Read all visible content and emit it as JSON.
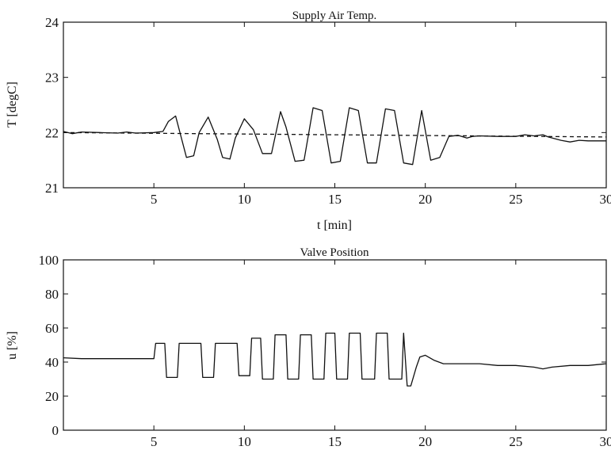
{
  "chart_data": [
    {
      "type": "line",
      "title": "Supply Air Temp.",
      "xlabel": "t [min]",
      "ylabel": "T [degC]",
      "xlim": [
        0,
        30
      ],
      "ylim": [
        21,
        24
      ],
      "xticks": [
        5,
        10,
        15,
        20,
        25,
        30
      ],
      "yticks": [
        21,
        22,
        23,
        24
      ],
      "grid": false,
      "series": [
        {
          "style": "solid",
          "x": [
            0,
            0.5,
            1,
            2,
            3,
            3.5,
            4,
            5,
            5.5,
            5.8,
            6.2,
            6.8,
            7.2,
            7.5,
            8.0,
            8.5,
            8.8,
            9.2,
            9.5,
            10.0,
            10.5,
            11.0,
            11.5,
            12.0,
            12.3,
            12.8,
            13.3,
            13.8,
            14.3,
            14.8,
            15.3,
            15.8,
            16.3,
            16.8,
            17.3,
            17.8,
            18.3,
            18.8,
            19.3,
            19.8,
            20.3,
            20.8,
            21.3,
            21.8,
            22.3,
            22.6,
            23.0,
            24,
            25,
            25.5,
            26,
            26.5,
            26.8,
            27.5,
            28,
            28.5,
            29,
            30
          ],
          "y": [
            22.02,
            21.98,
            22.01,
            22.0,
            21.99,
            22.01,
            21.99,
            22.0,
            22.02,
            22.2,
            22.3,
            21.55,
            21.58,
            22.0,
            22.28,
            21.88,
            21.55,
            21.52,
            21.9,
            22.25,
            22.05,
            21.62,
            21.62,
            22.38,
            22.1,
            21.48,
            21.5,
            22.45,
            22.4,
            21.45,
            21.48,
            22.45,
            22.4,
            21.45,
            21.45,
            22.43,
            22.4,
            21.45,
            21.42,
            22.4,
            21.5,
            21.55,
            21.93,
            21.95,
            21.9,
            21.93,
            21.94,
            21.93,
            21.93,
            21.96,
            21.94,
            21.96,
            21.92,
            21.86,
            21.83,
            21.86,
            21.85,
            21.85
          ]
        },
        {
          "style": "dashed",
          "x": [
            0,
            30
          ],
          "y": [
            22.0,
            21.92
          ]
        }
      ]
    },
    {
      "type": "line",
      "title": "Valve Position",
      "xlabel": "",
      "ylabel": "u [%]",
      "xlim": [
        0,
        30
      ],
      "ylim": [
        0,
        100
      ],
      "xticks": [
        5,
        10,
        15,
        20,
        25,
        30
      ],
      "yticks": [
        0,
        20,
        40,
        60,
        80,
        100
      ],
      "grid": false,
      "series": [
        {
          "style": "solid",
          "x": [
            0,
            1,
            2,
            3,
            4,
            5.0,
            5.1,
            5.6,
            5.7,
            6.3,
            6.4,
            7.6,
            7.7,
            8.3,
            8.4,
            9.6,
            9.7,
            10.3,
            10.4,
            10.9,
            11.0,
            11.6,
            11.7,
            12.3,
            12.4,
            13.0,
            13.1,
            13.7,
            13.8,
            14.4,
            14.5,
            15.0,
            15.1,
            15.7,
            15.8,
            16.4,
            16.5,
            17.2,
            17.3,
            17.9,
            18.0,
            18.7,
            18.8,
            19.0,
            19.2,
            19.5,
            19.7,
            20.0,
            20.5,
            21.0,
            22,
            23,
            24,
            25,
            26,
            26.5,
            27,
            28,
            29,
            30
          ],
          "y": [
            42.5,
            42,
            42,
            42,
            42,
            42,
            51,
            51,
            31,
            31,
            51,
            51,
            31,
            31,
            51,
            51,
            32,
            32,
            54,
            54,
            30,
            30,
            56,
            56,
            30,
            30,
            56,
            56,
            30,
            30,
            57,
            57,
            30,
            30,
            57,
            57,
            30,
            30,
            57,
            57,
            30,
            30,
            57,
            26,
            26,
            37,
            43,
            44,
            41,
            39,
            39,
            39,
            38,
            38,
            37,
            36,
            37,
            38,
            38,
            39
          ]
        }
      ]
    }
  ]
}
